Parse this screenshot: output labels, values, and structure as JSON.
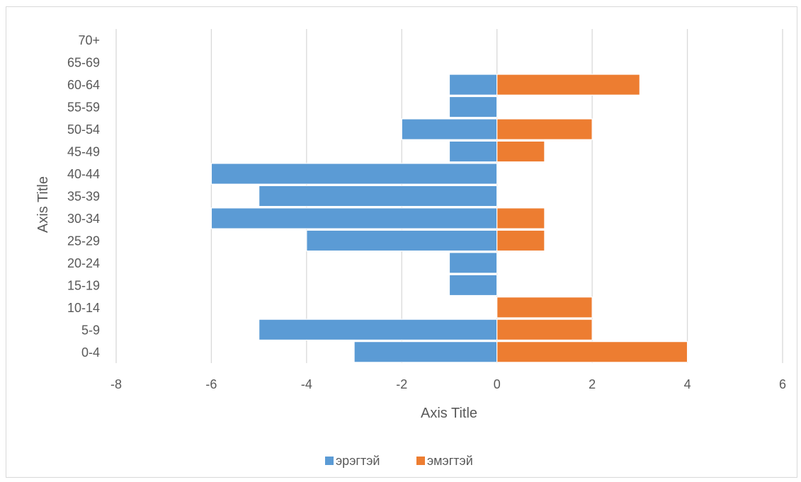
{
  "chart_data": {
    "type": "bar",
    "orientation": "horizontal",
    "categories": [
      "0-4",
      "5-9",
      "10-14",
      "15-19",
      "20-24",
      "25-29",
      "30-34",
      "35-39",
      "40-44",
      "45-49",
      "50-54",
      "55-59",
      "60-64",
      "65-69",
      "70+"
    ],
    "series": [
      {
        "name": "эрэгтэй",
        "color": "#5b9bd5",
        "values": [
          -3,
          -5,
          0,
          -1,
          -1,
          -4,
          -6,
          -5,
          -6,
          -1,
          -2,
          -1,
          -1,
          0,
          0
        ]
      },
      {
        "name": "эмэгтэй",
        "color": "#ed7d31",
        "values": [
          4,
          2,
          2,
          0,
          0,
          1,
          1,
          0,
          0,
          1,
          2,
          0,
          3,
          0,
          0
        ]
      }
    ],
    "xlabel": "Axis Title",
    "ylabel": "Axis Title",
    "xlim": [
      -8,
      6
    ],
    "xticks": [
      "-8",
      "-6",
      "-4",
      "-2",
      "0",
      "2",
      "4",
      "6"
    ],
    "grid": "vertical",
    "legend_position": "bottom"
  }
}
